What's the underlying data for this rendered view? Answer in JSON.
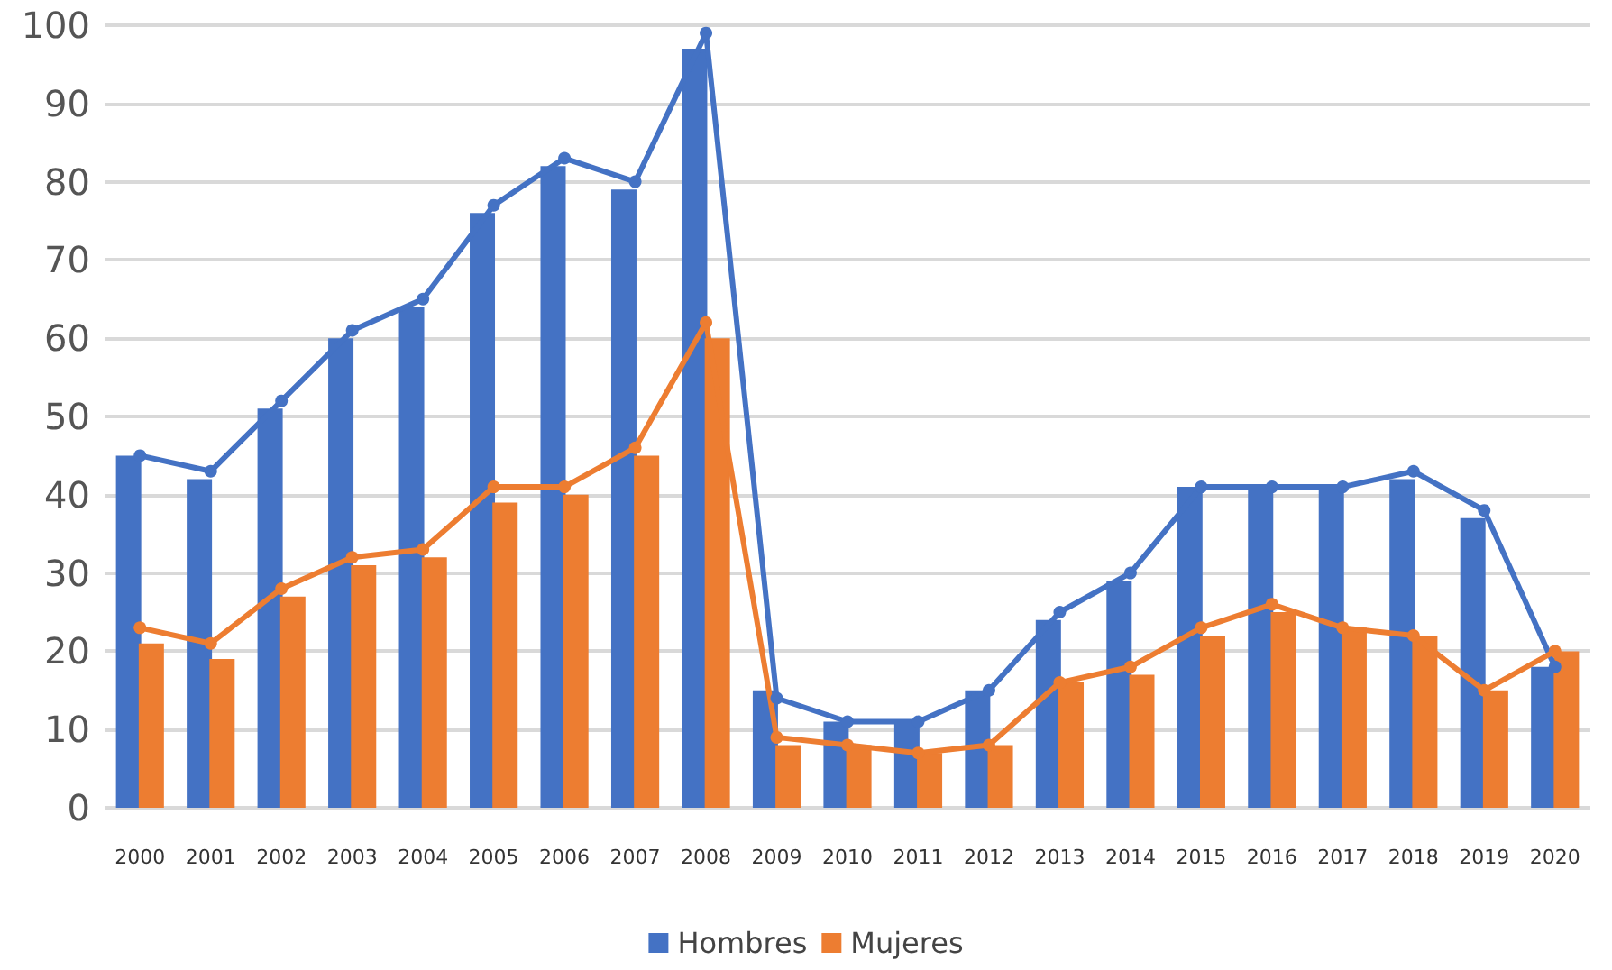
{
  "chart_data": {
    "type": "bar",
    "categories": [
      "2000",
      "2001",
      "2002",
      "2003",
      "2004",
      "2005",
      "2006",
      "2007",
      "2008",
      "2009",
      "2010",
      "2011",
      "2012",
      "2013",
      "2014",
      "2015",
      "2016",
      "2017",
      "2018",
      "2019",
      "2020"
    ],
    "series": [
      {
        "name": "Hombres",
        "color": "#4472c4",
        "values": [
          45,
          42,
          51,
          60,
          64,
          76,
          82,
          79,
          97,
          15,
          11,
          11,
          15,
          24,
          29,
          41,
          41,
          41,
          42,
          37,
          18
        ]
      },
      {
        "name": "Mujeres",
        "color": "#ed7d31",
        "values": [
          21,
          19,
          27,
          31,
          32,
          39,
          40,
          45,
          60,
          8,
          8,
          7,
          8,
          16,
          17,
          22,
          25,
          23,
          22,
          15,
          20
        ]
      },
      {
        "type": "line",
        "color": "#4472c4",
        "values": [
          45,
          43,
          52,
          61,
          65,
          77,
          83,
          80,
          99,
          14,
          11,
          11,
          15,
          25,
          30,
          41,
          41,
          41,
          43,
          38,
          18
        ]
      },
      {
        "type": "line",
        "color": "#ed7d31",
        "values": [
          23,
          21,
          28,
          32,
          33,
          41,
          41,
          46,
          62,
          9,
          8,
          7,
          8,
          16,
          18,
          23,
          26,
          23,
          22,
          15,
          20
        ]
      }
    ],
    "ylim": [
      0,
      100
    ],
    "yticks": [
      0,
      10,
      20,
      30,
      40,
      50,
      60,
      70,
      80,
      90,
      100
    ],
    "grid": "y",
    "legend": "bottom",
    "marker": "circle",
    "line_style": "solid"
  }
}
